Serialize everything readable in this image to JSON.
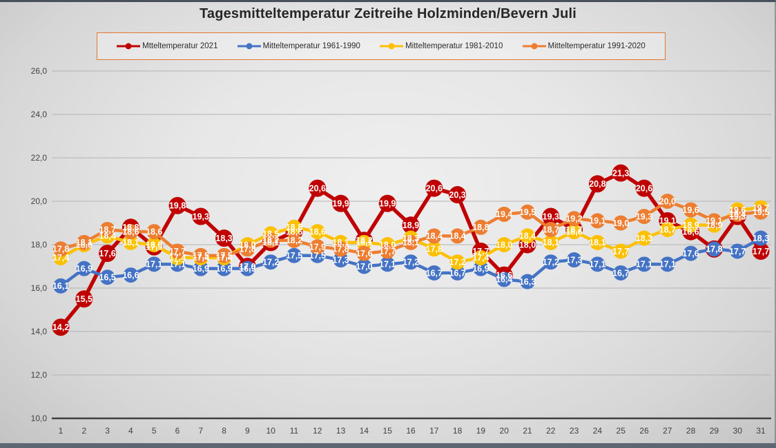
{
  "chart_data": {
    "type": "line",
    "title": "Tagesmitteltemperatur Zeitreihe Holzminden/Bevern Juli",
    "xlabel": "",
    "ylabel": "",
    "ylim": [
      10,
      26
    ],
    "y_tick_step": 2,
    "y_tick_labels": [
      "26,0",
      "24,0",
      "22,0",
      "20,0",
      "18,0",
      "16,0",
      "14,0",
      "12,0",
      "10,0"
    ],
    "x": [
      1,
      2,
      3,
      4,
      5,
      6,
      7,
      8,
      9,
      10,
      11,
      12,
      13,
      14,
      15,
      16,
      17,
      18,
      19,
      20,
      21,
      22,
      23,
      24,
      25,
      26,
      27,
      28,
      29,
      30,
      31
    ],
    "decimal_separator": ",",
    "grid": true,
    "legend_position": "top",
    "point_labels": "on-marker",
    "series": [
      {
        "name": "Mtteltemperatur 2021",
        "color": "#c00000",
        "values": [
          14.2,
          15.5,
          17.6,
          18.8,
          17.9,
          19.8,
          19.3,
          18.3,
          17.0,
          18.1,
          18.6,
          20.6,
          19.9,
          18.2,
          19.9,
          18.9,
          20.6,
          20.3,
          17.7,
          16.6,
          18.0,
          19.3,
          18.7,
          20.8,
          21.3,
          20.6,
          19.1,
          18.6,
          17.8,
          19.3,
          17.7
        ]
      },
      {
        "name": "Mitteltemperatur 1961-1990",
        "color": "#4472c4",
        "values": [
          16.1,
          16.9,
          16.5,
          16.6,
          17.1,
          17.1,
          16.9,
          16.9,
          16.9,
          17.2,
          17.5,
          17.5,
          17.3,
          17.0,
          17.1,
          17.2,
          16.7,
          16.7,
          16.9,
          16.4,
          16.3,
          17.2,
          17.3,
          17.1,
          16.7,
          17.1,
          17.1,
          17.6,
          17.8,
          17.7,
          18.3
        ]
      },
      {
        "name": "Mitteltemperatur 1981-2010",
        "color": "#ffc000",
        "values": [
          17.4,
          18.0,
          18.4,
          18.1,
          18.0,
          17.4,
          17.4,
          17.4,
          18.0,
          18.5,
          18.8,
          18.6,
          18.1,
          18.1,
          18.0,
          18.3,
          17.8,
          17.2,
          17.4,
          18.0,
          18.4,
          18.1,
          18.6,
          18.1,
          17.7,
          18.3,
          18.7,
          18.9,
          18.9,
          19.6,
          19.7
        ]
      },
      {
        "name": "Mitteltemperatur 1991-2020",
        "color": "#ed7d31",
        "values": [
          17.8,
          18.1,
          18.7,
          18.6,
          18.6,
          17.7,
          17.5,
          17.5,
          17.8,
          18.2,
          18.2,
          17.9,
          17.8,
          17.6,
          17.7,
          18.1,
          18.4,
          18.4,
          18.8,
          19.4,
          19.5,
          18.7,
          19.2,
          19.1,
          19.0,
          19.3,
          20.0,
          19.6,
          19.1,
          19.4,
          19.5
        ]
      }
    ]
  }
}
